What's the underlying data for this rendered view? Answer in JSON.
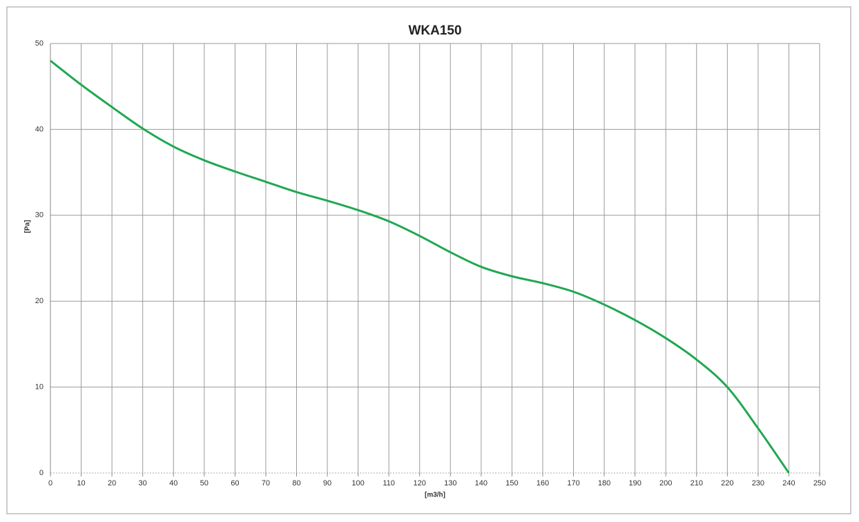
{
  "chart_data": {
    "type": "line",
    "title": "WKA150",
    "x_label": "[m3/h]",
    "y_label": "[Pa]",
    "x": [
      0,
      10,
      20,
      30,
      40,
      50,
      60,
      70,
      80,
      90,
      100,
      110,
      120,
      130,
      140,
      150,
      160,
      170,
      180,
      190,
      200,
      210,
      220,
      230,
      240
    ],
    "series": [
      {
        "name": "WKA150",
        "color": "#1fa84f",
        "values": [
          48,
          45.2,
          42.6,
          40.1,
          38,
          36.4,
          35.1,
          33.9,
          32.7,
          31.7,
          30.6,
          29.3,
          27.6,
          25.7,
          24,
          22.9,
          22.1,
          21.1,
          19.6,
          17.8,
          15.7,
          13.2,
          10,
          5.2,
          0
        ]
      }
    ],
    "xlim": [
      0,
      250
    ],
    "ylim": [
      0,
      50
    ],
    "xticks": [
      0,
      10,
      20,
      30,
      40,
      50,
      60,
      70,
      80,
      90,
      100,
      110,
      120,
      130,
      140,
      150,
      160,
      170,
      180,
      190,
      200,
      210,
      220,
      230,
      240,
      250
    ],
    "yticks": [
      0,
      10,
      20,
      30,
      40,
      50
    ],
    "grid": true
  }
}
